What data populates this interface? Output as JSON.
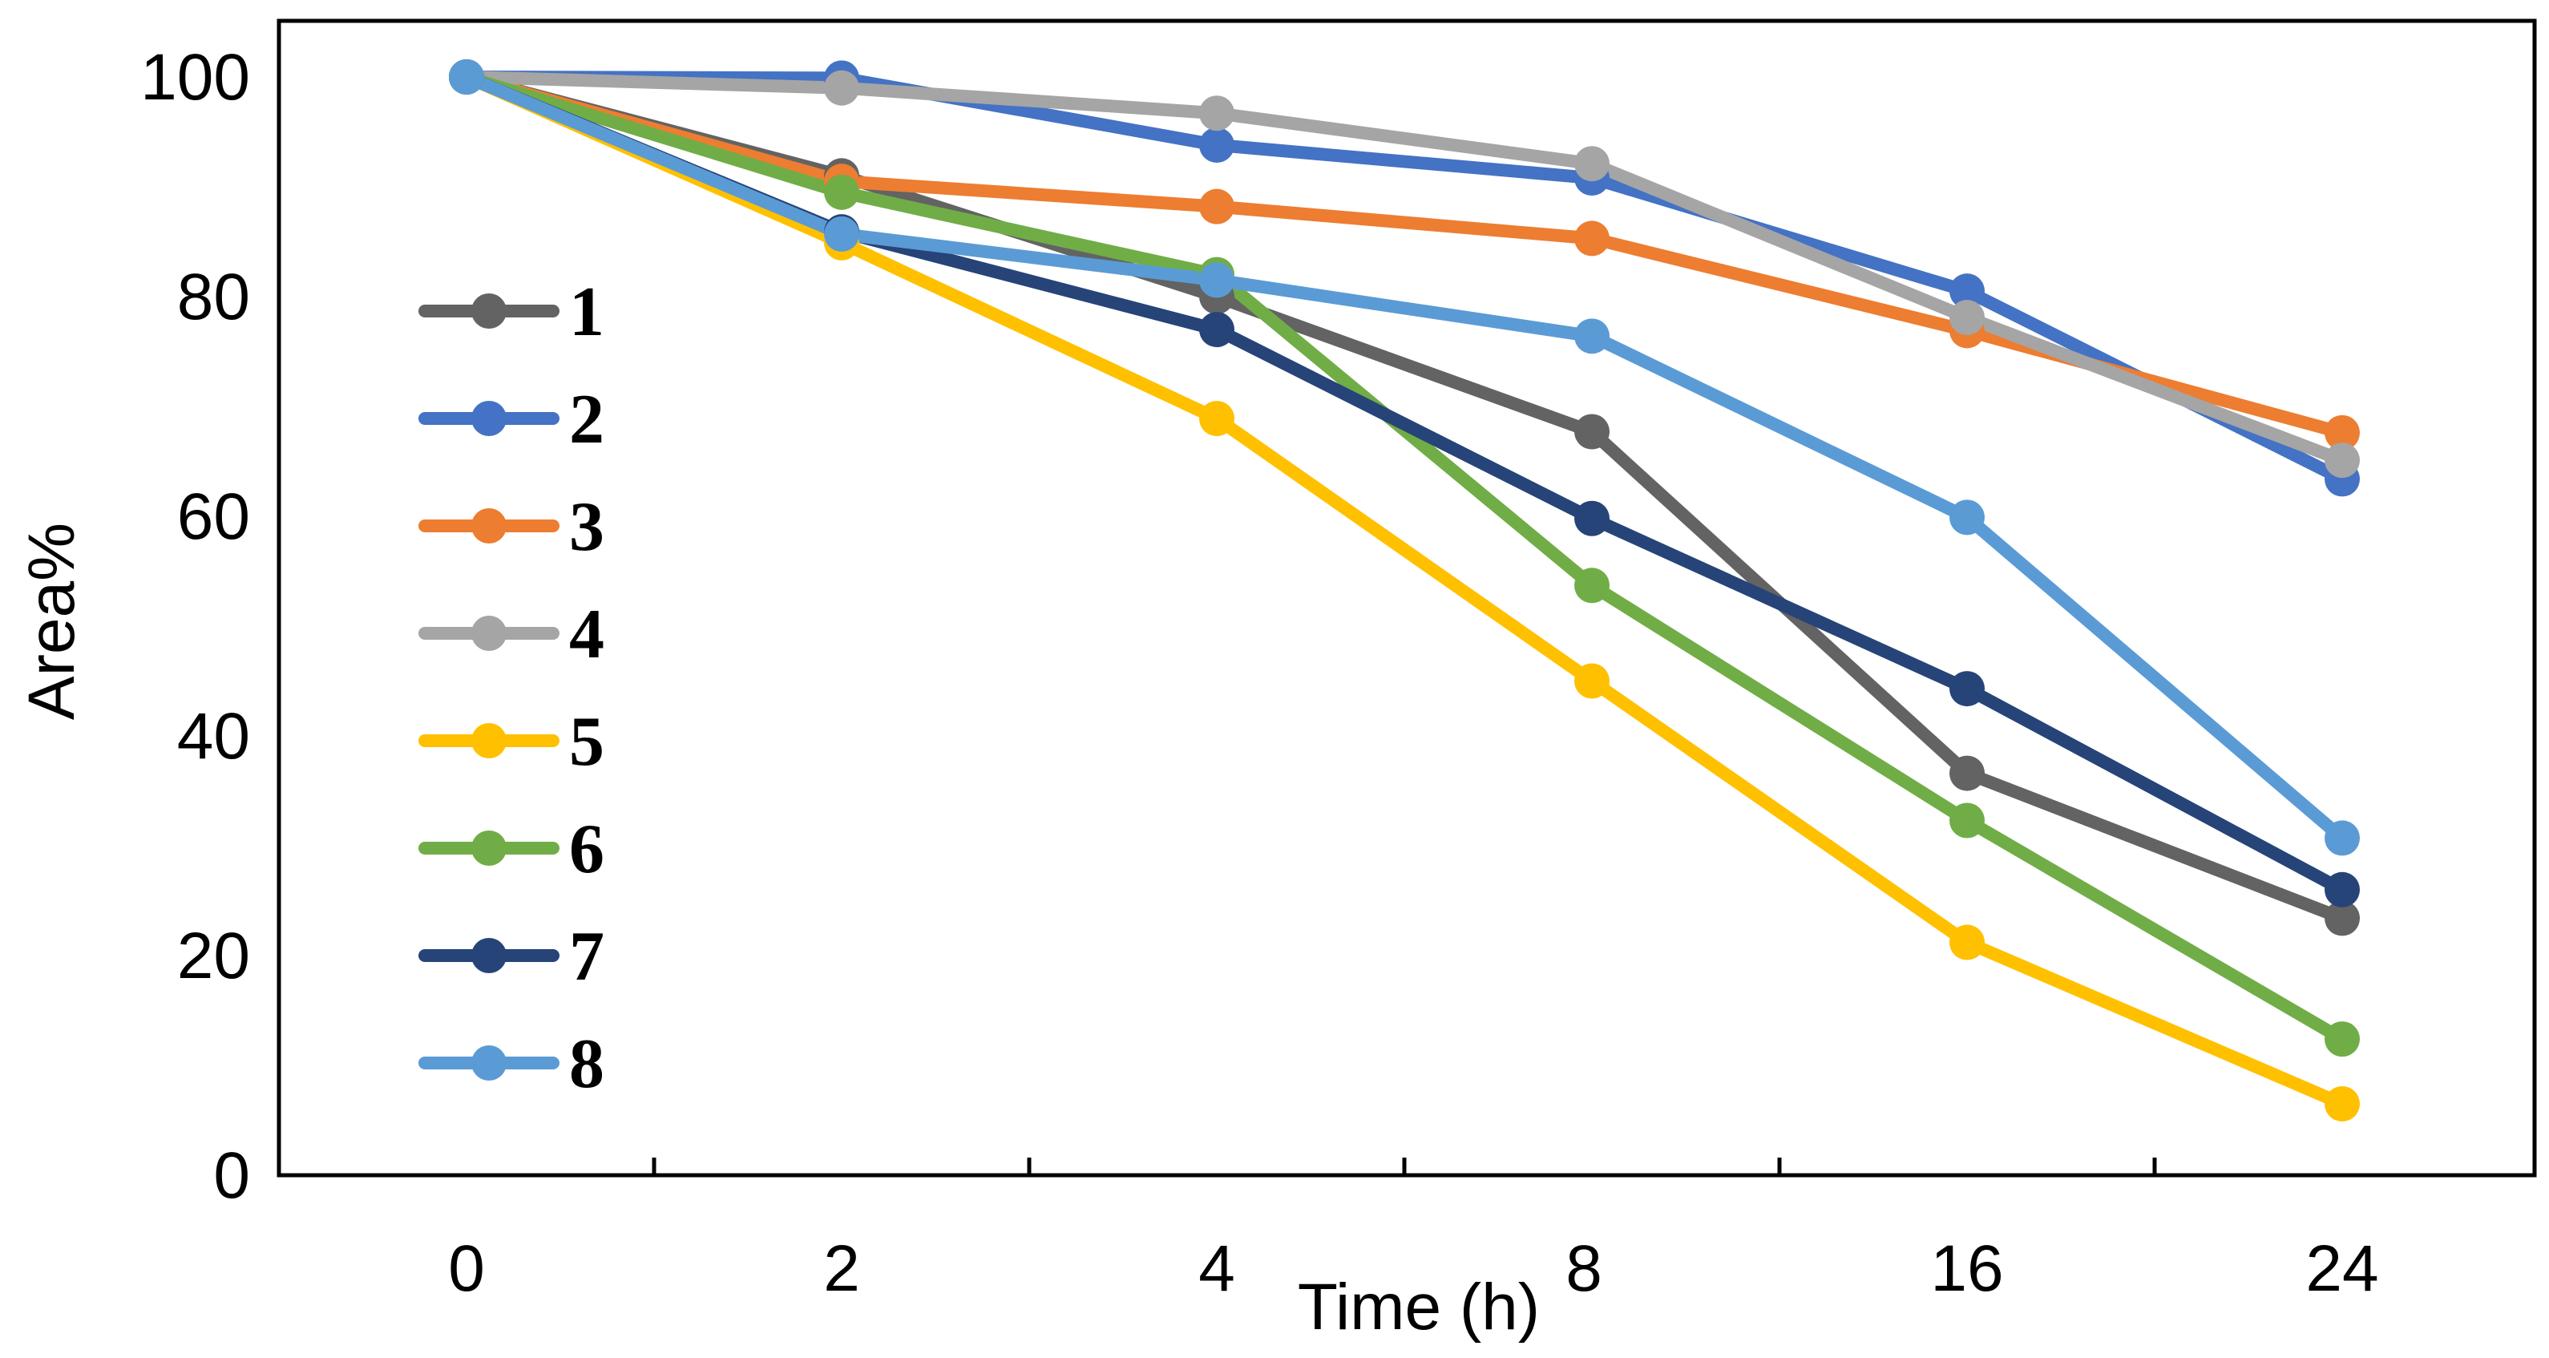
{
  "chart_data": {
    "type": "line",
    "title": "",
    "xlabel": "Time (h)",
    "ylabel": "Area%",
    "categories": [
      "0",
      "2",
      "4",
      "8",
      "16",
      "24"
    ],
    "ylim": [
      0,
      100
    ],
    "yticks": [
      "0",
      "20",
      "40",
      "60",
      "80",
      "100"
    ],
    "grid": false,
    "legend_position": "left",
    "series": [
      {
        "name": "1",
        "color": "#636363",
        "values": [
          100,
          91,
          80,
          67.7,
          36.6,
          23.4
        ]
      },
      {
        "name": "2",
        "color": "#4472C4",
        "values": [
          100,
          99.9,
          93.8,
          90.8,
          80.5,
          63.4
        ]
      },
      {
        "name": "3",
        "color": "#ED7D31",
        "values": [
          100,
          90.5,
          88.2,
          85.3,
          76.9,
          67.6
        ]
      },
      {
        "name": "4",
        "color": "#A5A5A5",
        "values": [
          100,
          99,
          96.7,
          92.1,
          78.1,
          65.1
        ]
      },
      {
        "name": "5",
        "color": "#FFC000",
        "values": [
          100,
          84.9,
          68.9,
          45,
          21.2,
          6.5
        ]
      },
      {
        "name": "6",
        "color": "#70AD47",
        "values": [
          100,
          89.5,
          82,
          53.7,
          32.3,
          12.4
        ]
      },
      {
        "name": "7",
        "color": "#264478",
        "values": [
          100,
          85.9,
          77,
          59.8,
          44.3,
          26
        ]
      },
      {
        "name": "8",
        "color": "#5B9BD5",
        "values": [
          100,
          85.7,
          81.5,
          76.4,
          59.9,
          30.7
        ]
      }
    ]
  }
}
